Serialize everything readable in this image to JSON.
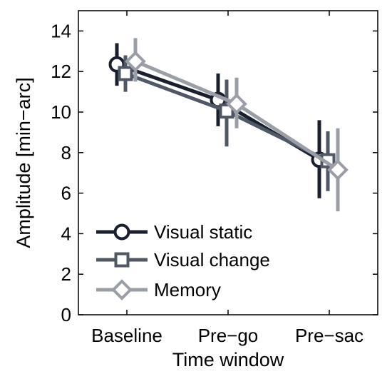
{
  "chart_data": {
    "type": "line",
    "xlabel": "Time window",
    "ylabel": "Amplitude [min−arc]",
    "categories": [
      "Baseline",
      "Pre−go",
      "Pre−sac"
    ],
    "ylim": [
      0,
      15
    ],
    "yticks": [
      0,
      2,
      4,
      6,
      8,
      10,
      12,
      14
    ],
    "yticklabels": [
      "0",
      "2",
      "4",
      "6",
      "8",
      "10",
      "12",
      "14"
    ],
    "grid": false,
    "legend_position": "bottom-left",
    "series": [
      {
        "name": "Visual static",
        "marker": "circle",
        "color": "#1a1f2e",
        "values": [
          12.35,
          10.6,
          7.65
        ],
        "error_low": [
          11.3,
          9.3,
          5.75
        ],
        "error_high": [
          13.4,
          11.9,
          9.6
        ]
      },
      {
        "name": "Visual change",
        "marker": "square",
        "color": "#505866",
        "values": [
          11.9,
          10.05,
          7.6
        ],
        "error_low": [
          11.0,
          8.3,
          6.1
        ],
        "error_high": [
          12.8,
          11.6,
          9.05
        ]
      },
      {
        "name": "Memory",
        "marker": "diamond",
        "color": "#9a9ea6",
        "values": [
          12.5,
          10.4,
          7.15
        ],
        "error_low": [
          11.5,
          9.2,
          5.1
        ],
        "error_high": [
          13.65,
          11.7,
          9.2
        ]
      }
    ]
  }
}
